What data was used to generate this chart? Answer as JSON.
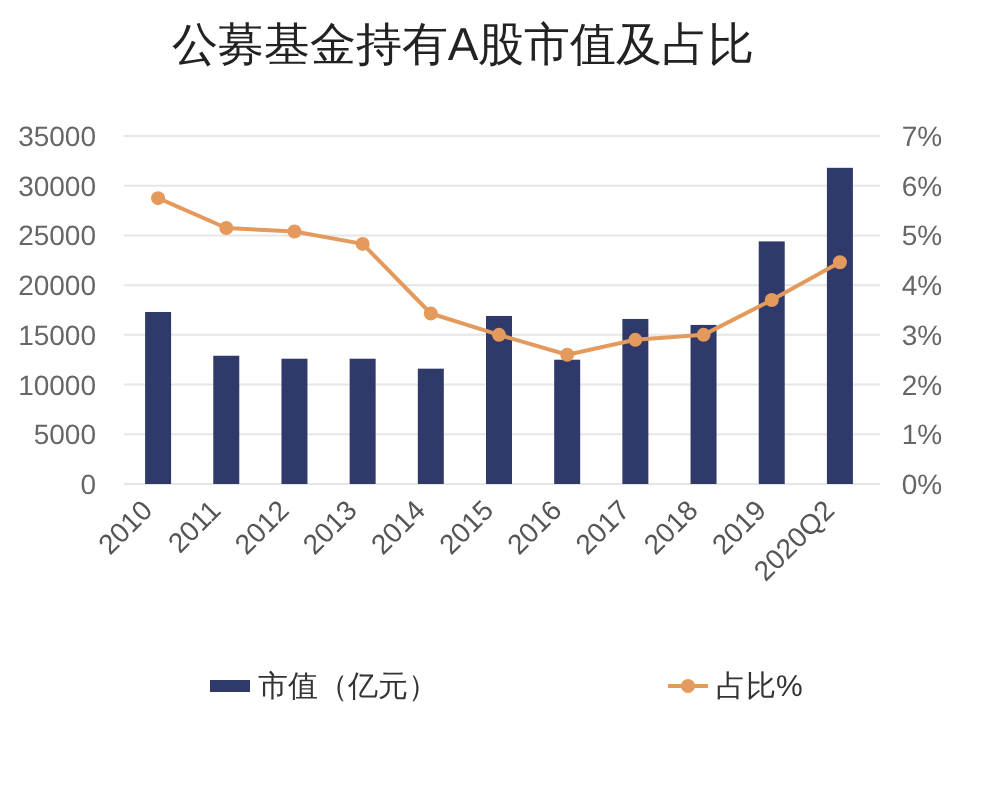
{
  "chart_data": {
    "type": "bar",
    "title": "公募基金持有A股市值及占比",
    "categories": [
      "2010",
      "2011",
      "2012",
      "2013",
      "2014",
      "2015",
      "2016",
      "2017",
      "2018",
      "2019",
      "2020Q2"
    ],
    "series": [
      {
        "name": "市值（亿元）",
        "color": "#2f3a6b",
        "values": [
          17300,
          12900,
          12600,
          12600,
          11600,
          16900,
          12500,
          16600,
          16000,
          24400,
          31800
        ]
      },
      {
        "name": "占比%",
        "type": "line",
        "axis": "y2",
        "color": "#e49a5c",
        "values": [
          5.75,
          5.15,
          5.08,
          4.83,
          3.43,
          3.0,
          2.6,
          2.9,
          3.0,
          3.7,
          4.46
        ]
      }
    ],
    "ylim": [
      0,
      35000
    ],
    "yticks": [
      0,
      5000,
      10000,
      15000,
      20000,
      25000,
      30000,
      35000
    ],
    "y2lim": [
      0,
      7
    ],
    "y2ticks": [
      {
        "value": 0,
        "label": "0%"
      },
      {
        "value": 1,
        "label": "1%"
      },
      {
        "value": 2,
        "label": "2%"
      },
      {
        "value": 3,
        "label": "3%"
      },
      {
        "value": 4,
        "label": "4%"
      },
      {
        "value": 5,
        "label": "5%"
      },
      {
        "value": 6,
        "label": "6%"
      },
      {
        "value": 7,
        "label": "7%"
      }
    ],
    "grid": "y",
    "legend": "bottom",
    "marker": "circle"
  }
}
